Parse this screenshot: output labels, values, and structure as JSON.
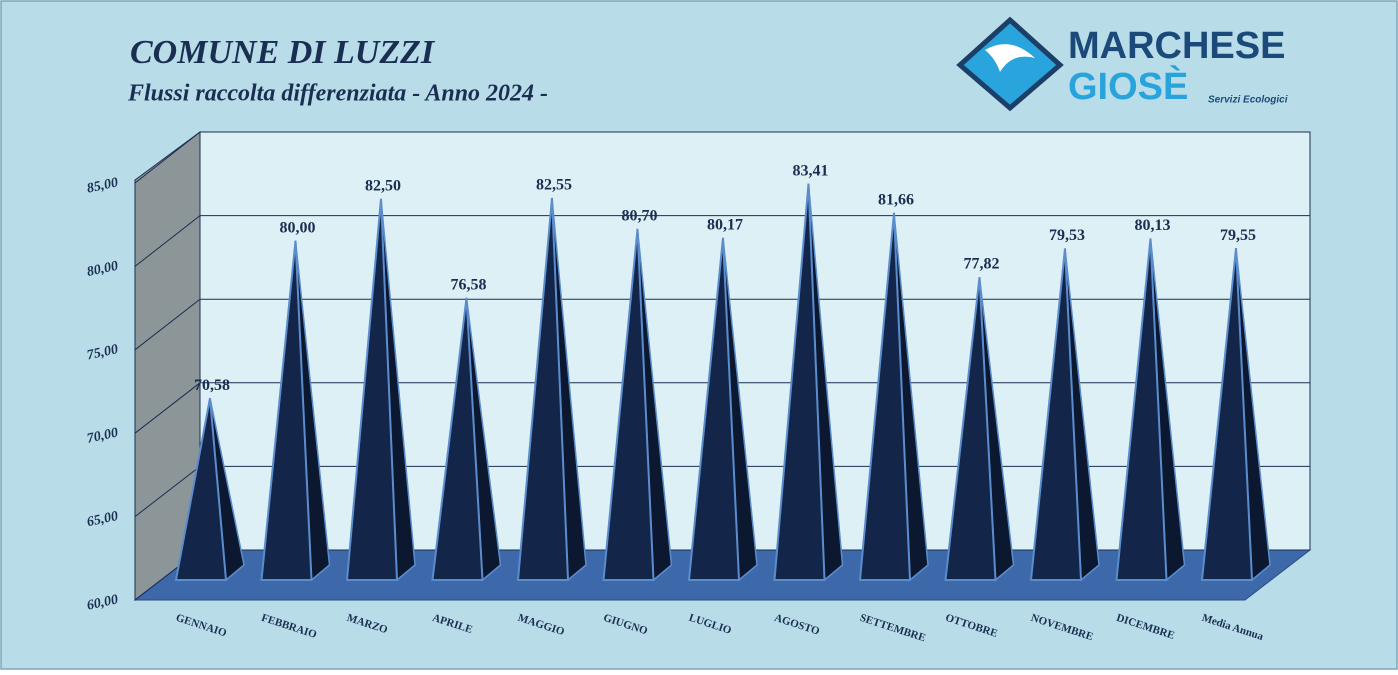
{
  "chart_data": {
    "type": "pyramid",
    "title": "COMUNE DI LUZZI",
    "subtitle": "Flussi raccolta differenziata - Anno 2024 -",
    "logo": {
      "line1": "MARCHESE",
      "line2": "GIOSÈ",
      "tagline": "Servizi Ecologici"
    },
    "categories": [
      "GENNAIO",
      "FEBBRAIO",
      "MARZO",
      "APRILE",
      "MAGGIO",
      "GIUGNO",
      "LUGLIO",
      "AGOSTO",
      "SETTEMBRE",
      "OTTOBRE",
      "NOVEMBRE",
      "DICEMBRE",
      "Media Annua"
    ],
    "values": [
      70.58,
      80,
      82.5,
      76.58,
      82.55,
      80.7,
      80.17,
      83.41,
      81.66,
      77.82,
      79.53,
      80.13,
      79.55
    ],
    "value_labels": [
      "70,58",
      "80,00",
      "82,50",
      "76,58",
      "82,55",
      "80,70",
      "80,17",
      "83,41",
      "81,66",
      "77,82",
      "79,53",
      "80,13",
      "79,55"
    ],
    "color": "#13264a",
    "ylim": [
      60,
      85
    ],
    "yticks": [
      {
        "value": 60,
        "label": "60,00"
      },
      {
        "value": 65,
        "label": "65,00"
      },
      {
        "value": 70,
        "label": "70,00"
      },
      {
        "value": 75,
        "label": "75,00"
      },
      {
        "value": 80,
        "label": "80,00"
      },
      {
        "value": 85,
        "label": "85,00"
      }
    ],
    "grid": true
  }
}
